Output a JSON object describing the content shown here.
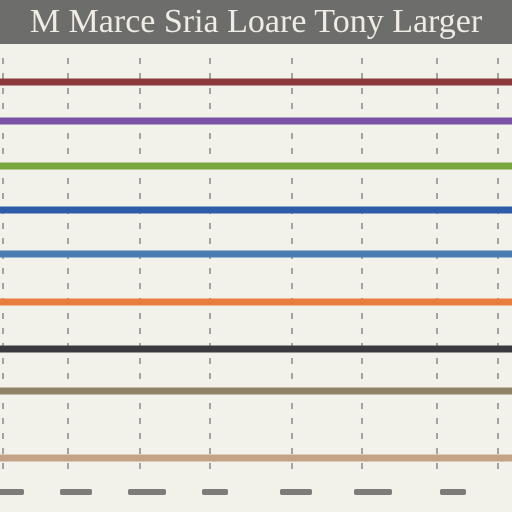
{
  "chart_data": {
    "type": "line",
    "title": "M Marce Sria Loare Tony Larger",
    "xlabel": "",
    "ylabel": "",
    "grid": true,
    "legend": "none",
    "series": [
      {
        "color": "#8a3a3a"
      },
      {
        "color": "#7a52a6"
      },
      {
        "color": "#7aa640"
      },
      {
        "color": "#2e5ca8"
      },
      {
        "color": "#4a7cb4"
      },
      {
        "color": "#e87d40"
      },
      {
        "color": "#3a3a3e"
      },
      {
        "color": "#8f8266"
      },
      {
        "color": "#c4a285"
      }
    ]
  },
  "colors": {
    "background": "#f3f2ea",
    "title_bar": "#6d6d6b",
    "title_text": "#eeece4",
    "gridline": "#8a8a86"
  }
}
